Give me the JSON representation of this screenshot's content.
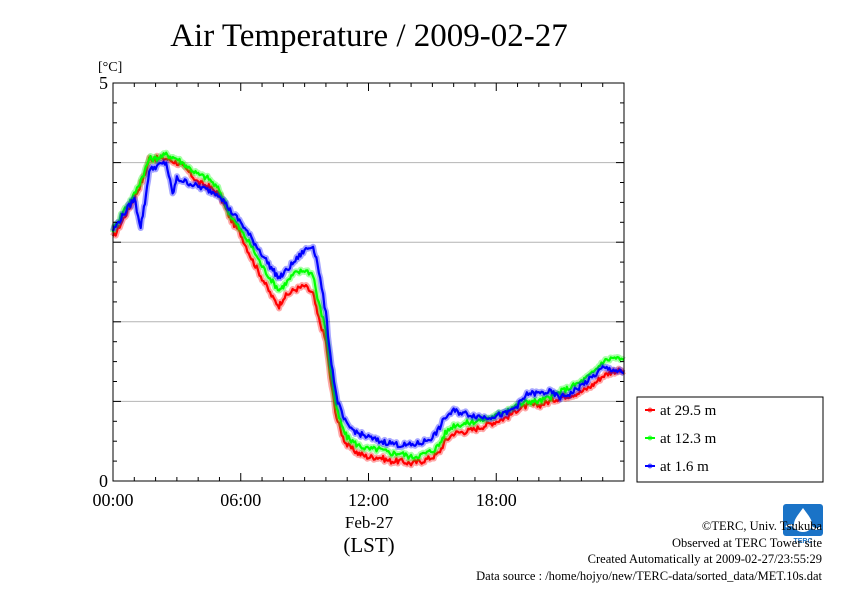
{
  "chart_data": {
    "type": "line",
    "title": "Air Temperature / 2009-02-27",
    "ylabel": "[°C]",
    "xlabel": "(LST)",
    "date_label": "Feb-27",
    "ylim": [
      0,
      5
    ],
    "y_ticks": [
      "0",
      "5"
    ],
    "x_range_hours": [
      0,
      24
    ],
    "x_tick_labels": [
      {
        "hour": 0,
        "label": "00:00"
      },
      {
        "hour": 6,
        "label": "06:00"
      },
      {
        "hour": 12,
        "label": "12:00"
      },
      {
        "hour": 18,
        "label": "18:00"
      }
    ],
    "grid": true,
    "legend_position": "right-bottom",
    "series": [
      {
        "name": "at 29.5 m",
        "color": "#ff0000",
        "points": [
          [
            0.0,
            3.05
          ],
          [
            0.5,
            3.3
          ],
          [
            1.0,
            3.55
          ],
          [
            1.5,
            3.85
          ],
          [
            1.7,
            4.05
          ],
          [
            2.0,
            4.05
          ],
          [
            2.5,
            4.05
          ],
          [
            3.0,
            4.0
          ],
          [
            3.5,
            3.9
          ],
          [
            4.0,
            3.75
          ],
          [
            4.5,
            3.7
          ],
          [
            5.0,
            3.6
          ],
          [
            5.5,
            3.3
          ],
          [
            6.0,
            3.1
          ],
          [
            6.5,
            2.8
          ],
          [
            7.0,
            2.55
          ],
          [
            7.5,
            2.3
          ],
          [
            7.8,
            2.2
          ],
          [
            8.0,
            2.3
          ],
          [
            8.5,
            2.4
          ],
          [
            9.0,
            2.45
          ],
          [
            9.4,
            2.35
          ],
          [
            9.6,
            2.1
          ],
          [
            10.0,
            1.75
          ],
          [
            10.2,
            1.3
          ],
          [
            10.5,
            0.8
          ],
          [
            10.8,
            0.55
          ],
          [
            11.0,
            0.45
          ],
          [
            11.5,
            0.35
          ],
          [
            12.0,
            0.3
          ],
          [
            12.5,
            0.3
          ],
          [
            13.0,
            0.25
          ],
          [
            13.5,
            0.25
          ],
          [
            14.0,
            0.22
          ],
          [
            14.5,
            0.25
          ],
          [
            15.0,
            0.3
          ],
          [
            15.3,
            0.35
          ],
          [
            15.6,
            0.5
          ],
          [
            16.0,
            0.6
          ],
          [
            16.5,
            0.62
          ],
          [
            17.0,
            0.65
          ],
          [
            17.5,
            0.7
          ],
          [
            18.0,
            0.75
          ],
          [
            18.5,
            0.8
          ],
          [
            19.0,
            0.9
          ],
          [
            19.5,
            0.95
          ],
          [
            20.0,
            0.95
          ],
          [
            20.5,
            1.0
          ],
          [
            21.0,
            1.05
          ],
          [
            21.5,
            1.08
          ],
          [
            22.0,
            1.12
          ],
          [
            22.5,
            1.2
          ],
          [
            23.0,
            1.32
          ],
          [
            23.5,
            1.38
          ],
          [
            24.0,
            1.38
          ]
        ]
      },
      {
        "name": "at 12.3 m",
        "color": "#00ff00",
        "points": [
          [
            0.0,
            3.15
          ],
          [
            0.5,
            3.4
          ],
          [
            1.0,
            3.6
          ],
          [
            1.5,
            3.9
          ],
          [
            1.7,
            4.05
          ],
          [
            2.0,
            4.05
          ],
          [
            2.5,
            4.1
          ],
          [
            3.0,
            4.05
          ],
          [
            3.5,
            3.95
          ],
          [
            4.0,
            3.85
          ],
          [
            4.5,
            3.8
          ],
          [
            5.0,
            3.65
          ],
          [
            5.5,
            3.35
          ],
          [
            6.0,
            3.15
          ],
          [
            6.5,
            2.95
          ],
          [
            7.0,
            2.7
          ],
          [
            7.5,
            2.5
          ],
          [
            7.8,
            2.4
          ],
          [
            8.0,
            2.45
          ],
          [
            8.5,
            2.6
          ],
          [
            9.0,
            2.65
          ],
          [
            9.4,
            2.6
          ],
          [
            9.6,
            2.3
          ],
          [
            10.0,
            1.9
          ],
          [
            10.2,
            1.45
          ],
          [
            10.5,
            0.9
          ],
          [
            10.8,
            0.65
          ],
          [
            11.0,
            0.55
          ],
          [
            11.5,
            0.45
          ],
          [
            12.0,
            0.4
          ],
          [
            12.5,
            0.4
          ],
          [
            13.0,
            0.35
          ],
          [
            13.5,
            0.35
          ],
          [
            14.0,
            0.3
          ],
          [
            14.5,
            0.33
          ],
          [
            15.0,
            0.38
          ],
          [
            15.3,
            0.45
          ],
          [
            15.6,
            0.6
          ],
          [
            16.0,
            0.7
          ],
          [
            16.5,
            0.72
          ],
          [
            17.0,
            0.75
          ],
          [
            17.5,
            0.78
          ],
          [
            18.0,
            0.82
          ],
          [
            18.5,
            0.9
          ],
          [
            19.0,
            0.95
          ],
          [
            19.5,
            1.0
          ],
          [
            20.0,
            1.0
          ],
          [
            20.5,
            1.05
          ],
          [
            21.0,
            1.12
          ],
          [
            21.5,
            1.18
          ],
          [
            22.0,
            1.25
          ],
          [
            22.5,
            1.35
          ],
          [
            23.0,
            1.5
          ],
          [
            23.5,
            1.55
          ],
          [
            24.0,
            1.52
          ]
        ]
      },
      {
        "name": "at 1.6 m",
        "color": "#0000ff",
        "points": [
          [
            0.0,
            3.15
          ],
          [
            0.5,
            3.35
          ],
          [
            1.0,
            3.55
          ],
          [
            1.3,
            3.2
          ],
          [
            1.5,
            3.5
          ],
          [
            1.7,
            3.9
          ],
          [
            2.0,
            3.95
          ],
          [
            2.5,
            4.0
          ],
          [
            2.8,
            3.6
          ],
          [
            3.0,
            3.8
          ],
          [
            3.5,
            3.75
          ],
          [
            4.0,
            3.7
          ],
          [
            4.5,
            3.65
          ],
          [
            5.0,
            3.6
          ],
          [
            5.5,
            3.4
          ],
          [
            6.0,
            3.25
          ],
          [
            6.5,
            3.05
          ],
          [
            7.0,
            2.85
          ],
          [
            7.5,
            2.65
          ],
          [
            7.8,
            2.55
          ],
          [
            8.0,
            2.6
          ],
          [
            8.5,
            2.75
          ],
          [
            9.0,
            2.9
          ],
          [
            9.4,
            2.95
          ],
          [
            9.6,
            2.75
          ],
          [
            10.0,
            2.1
          ],
          [
            10.2,
            1.6
          ],
          [
            10.5,
            1.05
          ],
          [
            10.8,
            0.8
          ],
          [
            11.0,
            0.7
          ],
          [
            11.5,
            0.6
          ],
          [
            12.0,
            0.55
          ],
          [
            12.5,
            0.5
          ],
          [
            13.0,
            0.48
          ],
          [
            13.5,
            0.45
          ],
          [
            14.0,
            0.45
          ],
          [
            14.5,
            0.48
          ],
          [
            15.0,
            0.55
          ],
          [
            15.3,
            0.65
          ],
          [
            15.6,
            0.8
          ],
          [
            16.0,
            0.88
          ],
          [
            16.5,
            0.85
          ],
          [
            17.0,
            0.82
          ],
          [
            17.5,
            0.8
          ],
          [
            18.0,
            0.82
          ],
          [
            18.5,
            0.85
          ],
          [
            19.0,
            0.95
          ],
          [
            19.5,
            1.1
          ],
          [
            20.0,
            1.1
          ],
          [
            20.5,
            1.12
          ],
          [
            21.0,
            1.05
          ],
          [
            21.5,
            1.1
          ],
          [
            22.0,
            1.2
          ],
          [
            22.5,
            1.3
          ],
          [
            23.0,
            1.42
          ],
          [
            23.5,
            1.4
          ],
          [
            24.0,
            1.35
          ]
        ]
      }
    ]
  },
  "credits": {
    "copyright": "©TERC, Univ. Tsukuba",
    "observed": "Observed at TERC Tower site",
    "created": "Created Automatically at 2009-02-27/23:55:29",
    "source": "Data source : /home/hojyo/new/TERC-data/sorted_data/MET.10s.dat"
  },
  "logo": {
    "text": "TERC",
    "color": "#1a73c7"
  }
}
